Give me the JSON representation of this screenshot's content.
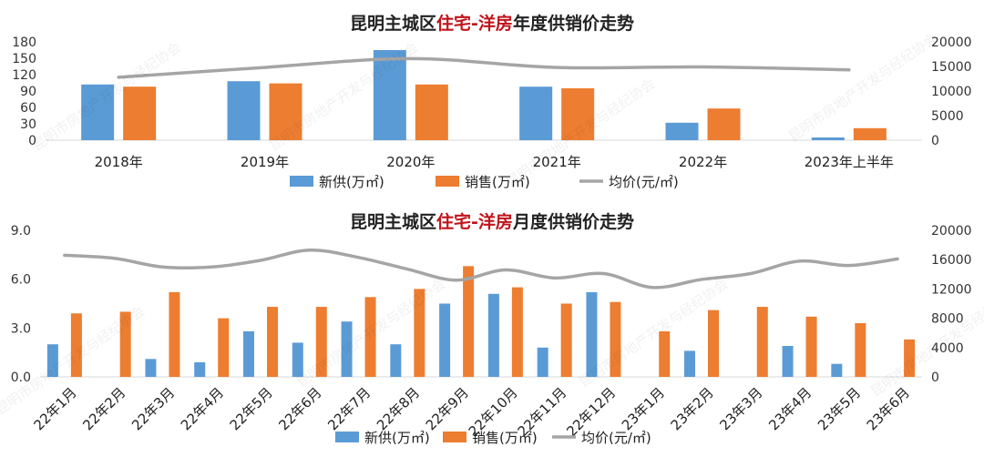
{
  "charts": [
    {
      "title_parts": [
        "昆明主城区",
        "住宅-洋房",
        "年度供销价走势"
      ],
      "legend": [
        "新供(万㎡)",
        "销售(万㎡)",
        "均价(元/㎡)"
      ],
      "chart_data": {
        "type": "bar",
        "categories": [
          "2018年",
          "2019年",
          "2020年",
          "2021年",
          "2022年",
          "2023年上半年"
        ],
        "series": [
          {
            "name": "新供(万㎡)",
            "type": "bar",
            "axis": "left",
            "color": "#5b9bd5",
            "values": [
              102,
              108,
              165,
              98,
              32,
              5
            ]
          },
          {
            "name": "销售(万㎡)",
            "type": "bar",
            "axis": "left",
            "color": "#ed7d31",
            "values": [
              98,
              104,
              102,
              95,
              58,
              22
            ]
          },
          {
            "name": "均价(元/㎡)",
            "type": "line",
            "axis": "right",
            "color": "#a5a5a5",
            "values": [
              12800,
              14800,
              16600,
              14800,
              14900,
              14300
            ]
          }
        ],
        "y_left": {
          "min": 0,
          "max": 180,
          "ticks": [
            "0",
            "30",
            "60",
            "90",
            "120",
            "150",
            "180"
          ]
        },
        "y_right": {
          "min": 0,
          "max": 20000,
          "ticks": [
            "0",
            "5000",
            "10000",
            "15000",
            "20000"
          ]
        },
        "legend_position": "bottom",
        "grid": false
      }
    },
    {
      "title_parts": [
        "昆明主城区",
        "住宅-洋房",
        "月度供销价走势"
      ],
      "legend": [
        "新供(万㎡)",
        "销售(万㎡)",
        "均价(元/㎡)"
      ],
      "chart_data": {
        "type": "bar",
        "categories": [
          "22年1月",
          "22年2月",
          "22年3月",
          "22年4月",
          "22年5月",
          "22年6月",
          "22年7月",
          "22年8月",
          "22年9月",
          "22年10月",
          "22年11月",
          "22年12月",
          "23年1月",
          "23年2月",
          "23年3月",
          "23年4月",
          "23年5月",
          "23年6月"
        ],
        "series": [
          {
            "name": "新供(万㎡)",
            "type": "bar",
            "axis": "left",
            "color": "#5b9bd5",
            "values": [
              2.0,
              0,
              1.1,
              0.9,
              2.8,
              2.1,
              3.4,
              2.0,
              4.5,
              5.1,
              1.8,
              5.2,
              0,
              1.6,
              0,
              1.9,
              0.8,
              0
            ]
          },
          {
            "name": "销售(万㎡)",
            "type": "bar",
            "axis": "left",
            "color": "#ed7d31",
            "values": [
              3.9,
              4.0,
              5.2,
              3.6,
              4.3,
              4.3,
              4.9,
              5.4,
              6.8,
              5.5,
              4.5,
              4.6,
              2.8,
              4.1,
              4.3,
              3.7,
              3.3,
              2.3
            ]
          },
          {
            "name": "均价(元/㎡)",
            "type": "line",
            "axis": "right",
            "color": "#a5a5a5",
            "values": [
              16600,
              16200,
              15000,
              15000,
              15900,
              17300,
              16300,
              14700,
              13200,
              14600,
              13500,
              14100,
              12200,
              13300,
              14100,
              15800,
              15200,
              16100
            ]
          }
        ],
        "y_left": {
          "min": 0,
          "max": 9,
          "ticks": [
            "0.0",
            "3.0",
            "6.0",
            "9.0"
          ]
        },
        "y_right": {
          "min": 0,
          "max": 20000,
          "ticks": [
            "0",
            "4000",
            "8000",
            "12000",
            "16000",
            "20000"
          ]
        },
        "legend_position": "bottom",
        "grid": false
      }
    }
  ],
  "watermark": "昆明市房地产开发与经纪协会",
  "colors": {
    "supply": "#5b9bd5",
    "sales": "#ed7d31",
    "price": "#a5a5a5",
    "highlight": "#c0141b"
  }
}
